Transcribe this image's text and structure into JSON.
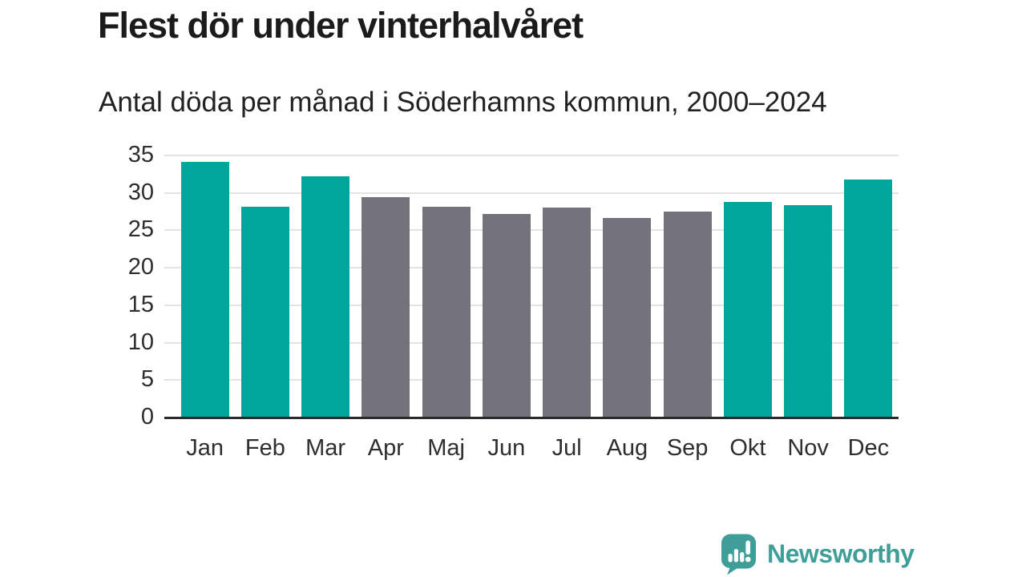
{
  "header": {
    "title": "Flest dör under vinterhalvåret",
    "subtitle": "Antal döda per månad i Söderhamns kommun, 2000–2024"
  },
  "chart_data": {
    "type": "bar",
    "title": "Flest dör under vinterhalvåret",
    "subtitle": "Antal döda per månad i Söderhamns kommun, 2000–2024",
    "categories": [
      "Jan",
      "Feb",
      "Mar",
      "Apr",
      "Maj",
      "Jun",
      "Jul",
      "Aug",
      "Sep",
      "Okt",
      "Nov",
      "Dec"
    ],
    "values": [
      34.1,
      28.2,
      32.2,
      29.4,
      28.1,
      27.2,
      28.0,
      26.6,
      27.5,
      28.8,
      28.4,
      31.8
    ],
    "bar_color_keys": [
      "teal",
      "teal",
      "teal",
      "gray",
      "gray",
      "gray",
      "gray",
      "gray",
      "gray",
      "teal",
      "teal",
      "teal"
    ],
    "colors": {
      "teal": "#00a59c",
      "gray": "#74727a"
    },
    "ylabel": "",
    "xlabel": "",
    "ylim": [
      0,
      35
    ],
    "yticks": [
      0,
      5,
      10,
      15,
      20,
      25,
      30,
      35
    ],
    "grid": true,
    "legend_position": "none"
  },
  "footer": {
    "brand": "Newsworthy",
    "brand_color": "#3f9f98",
    "logo_icon": "bar-chart-speech-bubble-icon"
  }
}
